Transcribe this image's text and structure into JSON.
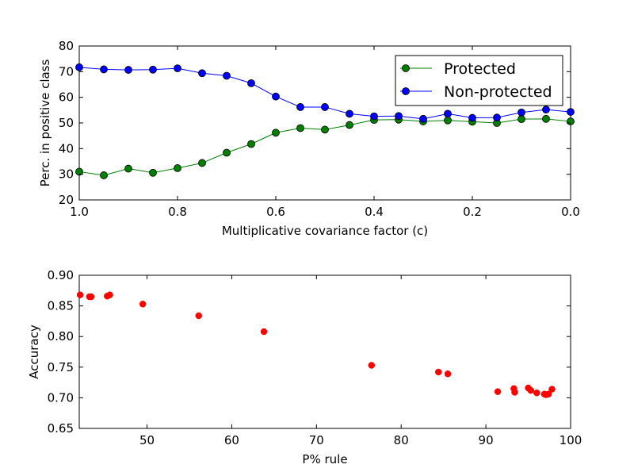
{
  "chart_data": [
    {
      "type": "line",
      "title": "",
      "xlabel": "Multiplicative covariance factor (c)",
      "ylabel": "Perc. in positive class",
      "xlim": [
        1.0,
        0.0
      ],
      "ylim": [
        20,
        80
      ],
      "x_reversed": true,
      "x_ticks": [
        1.0,
        0.8,
        0.6,
        0.4,
        0.2,
        0.0
      ],
      "x_tick_labels": [
        "1.0",
        "0.8",
        "0.6",
        "0.4",
        "0.2",
        "0.0"
      ],
      "y_ticks": [
        20,
        30,
        40,
        50,
        60,
        70,
        80
      ],
      "y_tick_labels": [
        "20",
        "30",
        "40",
        "50",
        "60",
        "70",
        "80"
      ],
      "grid": false,
      "legend_position": "top-right",
      "x": [
        1.0,
        0.95,
        0.9,
        0.85,
        0.8,
        0.75,
        0.7,
        0.65,
        0.6,
        0.55,
        0.5,
        0.45,
        0.4,
        0.35,
        0.3,
        0.25,
        0.2,
        0.15,
        0.1,
        0.05,
        0.0
      ],
      "series": [
        {
          "name": "Protected",
          "color": "#007f00",
          "values": [
            31.0,
            29.6,
            32.2,
            30.6,
            32.4,
            34.4,
            38.4,
            41.8,
            46.2,
            48.0,
            47.4,
            49.2,
            51.2,
            51.3,
            50.6,
            51.0,
            50.5,
            50.0,
            51.5,
            51.6,
            50.6
          ]
        },
        {
          "name": "Non-protected",
          "color": "#0000ff",
          "values": [
            71.7,
            70.9,
            70.7,
            70.8,
            71.3,
            69.4,
            68.4,
            65.5,
            60.3,
            56.2,
            56.2,
            53.6,
            52.6,
            52.7,
            51.6,
            53.6,
            52.0,
            52.1,
            54.1,
            55.2,
            54.3
          ]
        }
      ]
    },
    {
      "type": "scatter",
      "title": "",
      "xlabel": "P% rule",
      "ylabel": "Accuracy",
      "xlim": [
        42,
        100
      ],
      "ylim": [
        0.65,
        0.9
      ],
      "x_ticks": [
        50,
        60,
        70,
        80,
        90,
        100
      ],
      "x_tick_labels": [
        "50",
        "60",
        "70",
        "80",
        "90",
        "100"
      ],
      "y_ticks": [
        0.65,
        0.7,
        0.75,
        0.8,
        0.85,
        0.9
      ],
      "y_tick_labels": [
        "0.65",
        "0.70",
        "0.75",
        "0.80",
        "0.85",
        "0.90"
      ],
      "grid": false,
      "color": "#ff0000",
      "points": [
        {
          "x": 42.1,
          "y": 0.868
        },
        {
          "x": 43.2,
          "y": 0.865
        },
        {
          "x": 43.4,
          "y": 0.865
        },
        {
          "x": 45.3,
          "y": 0.866
        },
        {
          "x": 45.6,
          "y": 0.868
        },
        {
          "x": 49.5,
          "y": 0.853
        },
        {
          "x": 56.1,
          "y": 0.834
        },
        {
          "x": 63.8,
          "y": 0.808
        },
        {
          "x": 76.5,
          "y": 0.753
        },
        {
          "x": 84.4,
          "y": 0.742
        },
        {
          "x": 85.5,
          "y": 0.739
        },
        {
          "x": 91.4,
          "y": 0.71
        },
        {
          "x": 93.3,
          "y": 0.715
        },
        {
          "x": 93.4,
          "y": 0.709
        },
        {
          "x": 95.0,
          "y": 0.716
        },
        {
          "x": 95.3,
          "y": 0.712
        },
        {
          "x": 96.0,
          "y": 0.708
        },
        {
          "x": 96.9,
          "y": 0.706
        },
        {
          "x": 97.1,
          "y": 0.705
        },
        {
          "x": 97.4,
          "y": 0.706
        },
        {
          "x": 97.8,
          "y": 0.714
        }
      ]
    }
  ]
}
